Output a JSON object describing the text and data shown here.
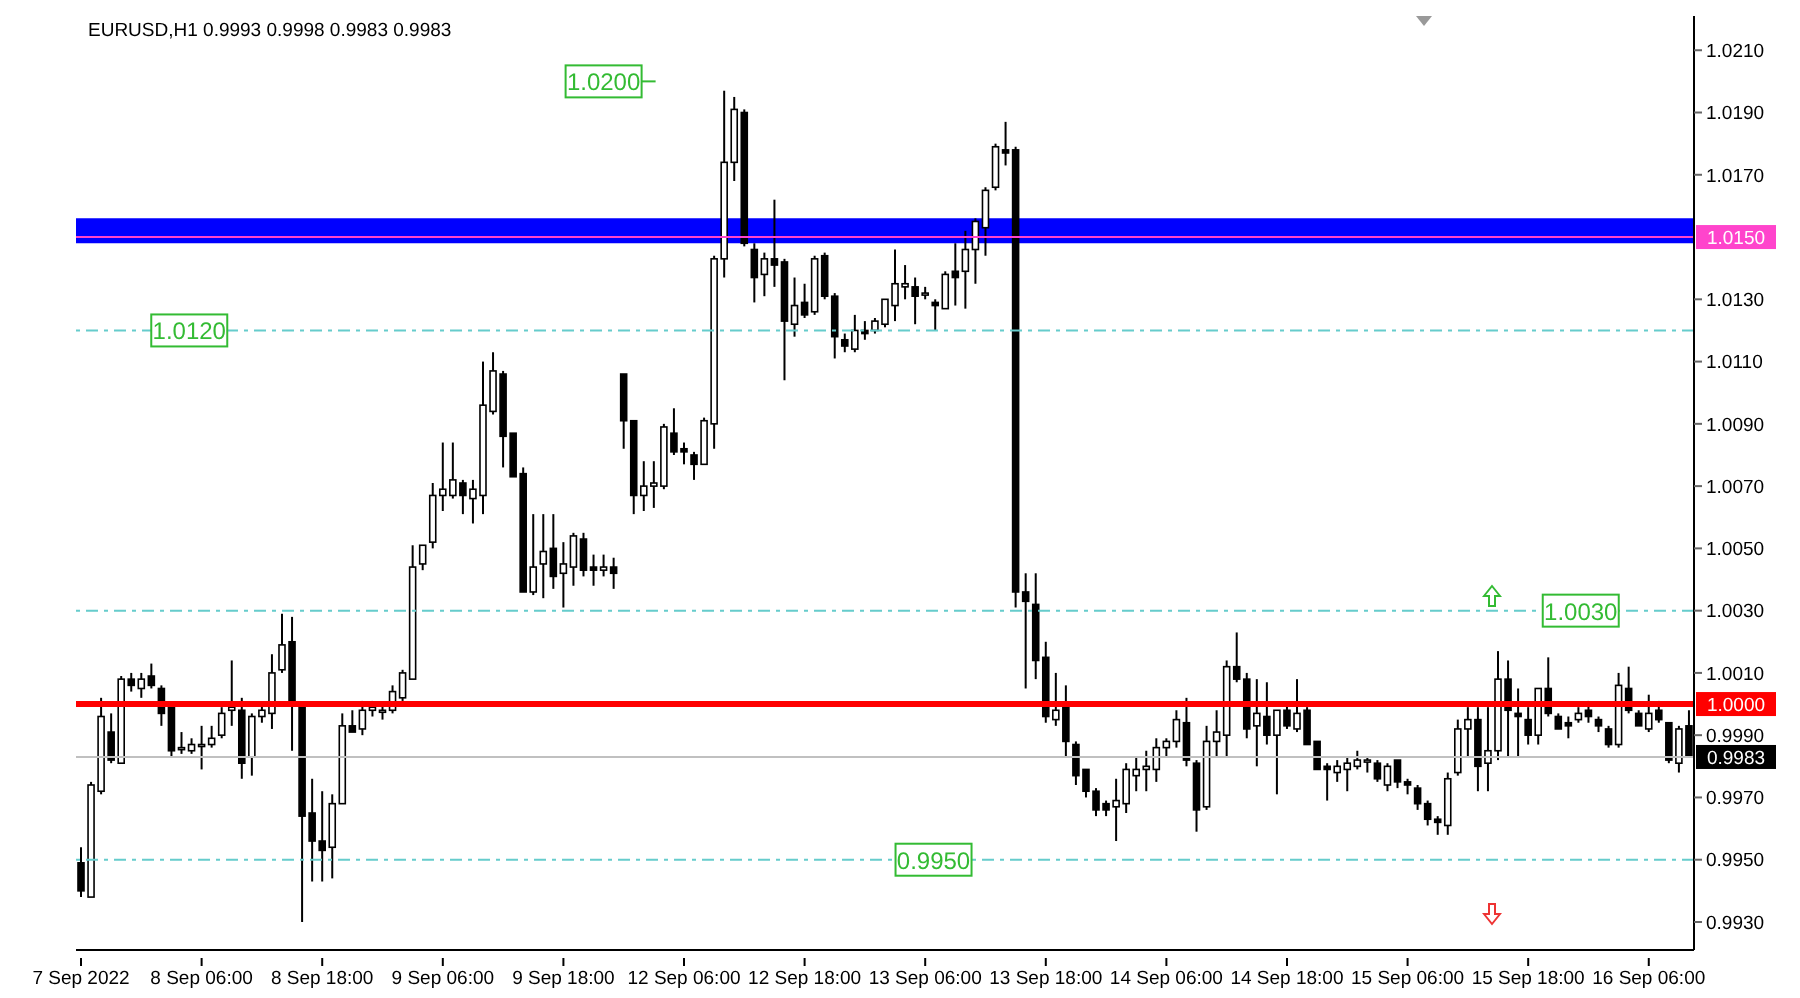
{
  "chart_data": {
    "type": "candlestick",
    "title": "EURUSD,H1  0.9993 0.9998 0.9983 0.9983",
    "color": "#000000",
    "categories": [
      "7 Sep 2022",
      null,
      null,
      null,
      null,
      null,
      null,
      null,
      null,
      null,
      null,
      null,
      "8 Sep 06:00",
      null,
      null,
      null,
      null,
      null,
      null,
      null,
      null,
      null,
      null,
      null,
      "8 Sep 18:00",
      null,
      null,
      null,
      null,
      null,
      null,
      null,
      null,
      null,
      null,
      null,
      "9 Sep 06:00",
      null,
      null,
      null,
      null,
      null,
      null,
      null,
      null,
      null,
      null,
      null,
      "9 Sep 18:00",
      null,
      null,
      null,
      null,
      null,
      null,
      null,
      null,
      null,
      null,
      null,
      "12 Sep 06:00",
      null,
      null,
      null,
      null,
      null,
      null,
      null,
      null,
      null,
      null,
      null,
      "12 Sep 18:00",
      null,
      null,
      null,
      null,
      null,
      null,
      null,
      null,
      null,
      null,
      null,
      "13 Sep 06:00",
      null,
      null,
      null,
      null,
      null,
      null,
      null,
      null,
      null,
      null,
      null,
      "13 Sep 18:00",
      null,
      null,
      null,
      null,
      null,
      null,
      null,
      null,
      null,
      null,
      null,
      "14 Sep 06:00",
      null,
      null,
      null,
      null,
      null,
      null,
      null,
      null,
      null,
      null,
      null,
      "14 Sep 18:00",
      null,
      null,
      null,
      null,
      null,
      null,
      null,
      null,
      null,
      null,
      null,
      "15 Sep 06:00",
      null,
      null,
      null,
      null,
      null,
      null,
      null,
      null,
      null,
      null,
      null,
      "15 Sep 18:00",
      null,
      null,
      null,
      null,
      null,
      null,
      null,
      null,
      null,
      null,
      null,
      "16 Sep 06:00",
      null,
      null,
      null,
      null
    ],
    "ohlc": [
      [
        0.9949,
        0.9954,
        0.9938,
        0.994
      ],
      [
        0.9938,
        0.9975,
        0.9938,
        0.9974
      ],
      [
        0.9972,
        1.0002,
        0.9971,
        0.9996
      ],
      [
        0.9991,
        0.9997,
        0.9981,
        0.9982
      ],
      [
        0.9981,
        1.0009,
        0.9981,
        1.0008
      ],
      [
        1.0008,
        1.001,
        1.0004,
        1.0006
      ],
      [
        1.0005,
        1.001,
        1.0002,
        1.0008
      ],
      [
        1.0009,
        1.0013,
        1.0005,
        1.0006
      ],
      [
        1.0005,
        1.0006,
        0.9993,
        0.9997
      ],
      [
        0.9999,
        0.9999,
        0.9983,
        0.9985
      ],
      [
        0.9986,
        0.9991,
        0.9984,
        0.9986
      ],
      [
        0.9985,
        0.9989,
        0.9984,
        0.9987
      ],
      [
        0.9987,
        0.9993,
        0.9979,
        0.9987
      ],
      [
        0.9987,
        0.9993,
        0.9986,
        0.9989
      ],
      [
        0.999,
        0.9999,
        0.9989,
        0.9997
      ],
      [
        0.9998,
        1.0014,
        0.9993,
        0.9999
      ],
      [
        0.9998,
        1.0002,
        0.9976,
        0.9981
      ],
      [
        0.9983,
        0.9997,
        0.9977,
        0.9996
      ],
      [
        0.9996,
        1.0,
        0.9994,
        0.9998
      ],
      [
        0.9997,
        1.0016,
        0.9992,
        1.001
      ],
      [
        1.0011,
        1.0029,
        1.001,
        1.0019
      ],
      [
        1.002,
        1.0028,
        0.9985,
        1.0
      ],
      [
        1.0,
        1.0,
        0.993,
        0.9964
      ],
      [
        0.9965,
        0.9976,
        0.9943,
        0.9956
      ],
      [
        0.9956,
        0.9972,
        0.9943,
        0.9953
      ],
      [
        0.9954,
        0.9971,
        0.9944,
        0.9968
      ],
      [
        0.9968,
        0.9997,
        0.9968,
        0.9993
      ],
      [
        0.9993,
        0.9998,
        0.9991,
        0.9991
      ],
      [
        0.9992,
        1.0001,
        0.999,
        0.9998
      ],
      [
        0.9998,
        1.0001,
        0.9996,
        0.9999
      ],
      [
        0.9998,
        1.0,
        0.9995,
        0.9998
      ],
      [
        0.9998,
        1.0006,
        0.9997,
        1.0004
      ],
      [
        1.0002,
        1.0011,
        1.0001,
        1.001
      ],
      [
        1.0008,
        1.0051,
        1.0008,
        1.0044
      ],
      [
        1.0045,
        1.0051,
        1.0043,
        1.0051
      ],
      [
        1.0052,
        1.0071,
        1.005,
        1.0067
      ],
      [
        1.0067,
        1.0084,
        1.0062,
        1.0069
      ],
      [
        1.0067,
        1.0084,
        1.0066,
        1.0072
      ],
      [
        1.0071,
        1.0072,
        1.0061,
        1.0067
      ],
      [
        1.0066,
        1.0072,
        1.0058,
        1.0069
      ],
      [
        1.0067,
        1.011,
        1.0061,
        1.0096
      ],
      [
        1.0094,
        1.0113,
        1.0093,
        1.0107
      ],
      [
        1.0106,
        1.0107,
        1.0076,
        1.0086
      ],
      [
        1.0087,
        1.0087,
        1.0073,
        1.0073
      ],
      [
        1.0074,
        1.0076,
        1.0036,
        1.0036
      ],
      [
        1.0036,
        1.0061,
        1.0035,
        1.0044
      ],
      [
        1.0045,
        1.0061,
        1.0034,
        1.0049
      ],
      [
        1.005,
        1.0061,
        1.0037,
        1.0041
      ],
      [
        1.0042,
        1.0052,
        1.0031,
        1.0045
      ],
      [
        1.0044,
        1.0055,
        1.0038,
        1.0054
      ],
      [
        1.0053,
        1.0055,
        1.0041,
        1.0043
      ],
      [
        1.0044,
        1.0048,
        1.0038,
        1.0043
      ],
      [
        1.0043,
        1.0048,
        1.0041,
        1.0044
      ],
      [
        1.0044,
        1.0047,
        1.0037,
        1.0042
      ],
      [
        1.0106,
        1.0106,
        1.0082,
        1.0091
      ],
      [
        1.0091,
        1.0091,
        1.0061,
        1.0067
      ],
      [
        1.0067,
        1.0078,
        1.0062,
        1.007
      ],
      [
        1.007,
        1.0078,
        1.0063,
        1.0071
      ],
      [
        1.007,
        1.009,
        1.0069,
        1.0089
      ],
      [
        1.0087,
        1.0095,
        1.008,
        1.0081
      ],
      [
        1.0082,
        1.0084,
        1.0077,
        1.0081
      ],
      [
        1.008,
        1.0081,
        1.0072,
        1.0077
      ],
      [
        1.0077,
        1.0092,
        1.0077,
        1.0091
      ],
      [
        1.009,
        1.0144,
        1.0082,
        1.0143
      ],
      [
        1.0143,
        1.0197,
        1.0137,
        1.0174
      ],
      [
        1.0174,
        1.0195,
        1.0168,
        1.0191
      ],
      [
        1.019,
        1.0191,
        1.0147,
        1.0148
      ],
      [
        1.0146,
        1.0148,
        1.0129,
        1.0137
      ],
      [
        1.0138,
        1.0145,
        1.0131,
        1.0143
      ],
      [
        1.0143,
        1.0162,
        1.0134,
        1.0141
      ],
      [
        1.0142,
        1.0143,
        1.0104,
        1.0123
      ],
      [
        1.0122,
        1.0137,
        1.0118,
        1.0128
      ],
      [
        1.0129,
        1.0135,
        1.0124,
        1.0125
      ],
      [
        1.0126,
        1.0144,
        1.0125,
        1.0143
      ],
      [
        1.0144,
        1.0145,
        1.013,
        1.0131
      ],
      [
        1.0131,
        1.0132,
        1.0111,
        1.0118
      ],
      [
        1.0117,
        1.0119,
        1.0113,
        1.0115
      ],
      [
        1.0114,
        1.0125,
        1.0113,
        1.012
      ],
      [
        1.012,
        1.0123,
        1.0117,
        1.0119
      ],
      [
        1.012,
        1.0124,
        1.0119,
        1.0123
      ],
      [
        1.0122,
        1.013,
        1.0121,
        1.013
      ],
      [
        1.0128,
        1.0146,
        1.0123,
        1.0135
      ],
      [
        1.0134,
        1.0141,
        1.013,
        1.0135
      ],
      [
        1.0134,
        1.0137,
        1.0122,
        1.0131
      ],
      [
        1.0132,
        1.0134,
        1.013,
        1.0132
      ],
      [
        1.0129,
        1.013,
        1.012,
        1.0128
      ],
      [
        1.0127,
        1.0139,
        1.0127,
        1.0138
      ],
      [
        1.0139,
        1.0148,
        1.0128,
        1.0137
      ],
      [
        1.0139,
        1.0152,
        1.0127,
        1.0146
      ],
      [
        1.0146,
        1.0156,
        1.0135,
        1.0155
      ],
      [
        1.0153,
        1.0166,
        1.0144,
        1.0165
      ],
      [
        1.0166,
        1.018,
        1.0165,
        1.0179
      ],
      [
        1.0178,
        1.0187,
        1.0173,
        1.0177
      ],
      [
        1.0178,
        1.0179,
        1.0031,
        1.0036
      ],
      [
        1.0036,
        1.0042,
        1.0005,
        1.0033
      ],
      [
        1.0032,
        1.0042,
        1.0008,
        1.0014
      ],
      [
        1.0015,
        1.002,
        0.9994,
        0.9996
      ],
      [
        0.9995,
        1.001,
        0.9993,
        0.9998
      ],
      [
        1.0,
        1.0006,
        0.9983,
        0.9988
      ],
      [
        0.9987,
        0.9988,
        0.9974,
        0.9977
      ],
      [
        0.9979,
        0.9979,
        0.997,
        0.9972
      ],
      [
        0.9972,
        0.9973,
        0.9964,
        0.9966
      ],
      [
        0.9968,
        0.9969,
        0.9964,
        0.9966
      ],
      [
        0.9967,
        0.9976,
        0.9956,
        0.9969
      ],
      [
        0.9968,
        0.9981,
        0.9965,
        0.9979
      ],
      [
        0.9977,
        0.9983,
        0.9972,
        0.9979
      ],
      [
        0.9979,
        0.9985,
        0.9972,
        0.998
      ],
      [
        0.9979,
        0.9989,
        0.9975,
        0.9986
      ],
      [
        0.9986,
        0.9989,
        0.9983,
        0.9988
      ],
      [
        0.9988,
        0.9998,
        0.9986,
        0.9995
      ],
      [
        0.9994,
        1.0002,
        0.998,
        0.9982
      ],
      [
        0.9981,
        0.9982,
        0.9959,
        0.9966
      ],
      [
        0.9967,
        0.9993,
        0.9966,
        0.9988
      ],
      [
        0.9988,
        0.9998,
        0.9983,
        0.9991
      ],
      [
        0.999,
        1.0014,
        0.9983,
        1.0012
      ],
      [
        1.0012,
        1.0023,
        1.0007,
        1.0008
      ],
      [
        1.0008,
        1.001,
        0.9989,
        0.9992
      ],
      [
        0.9993,
        1.0008,
        0.998,
        0.9997
      ],
      [
        0.9996,
        1.0007,
        0.9987,
        0.999
      ],
      [
        0.999,
        0.9998,
        0.9971,
        0.9998
      ],
      [
        0.9998,
        1.0,
        0.9992,
        0.9993
      ],
      [
        0.9992,
        1.0008,
        0.9991,
        0.9997
      ],
      [
        0.9998,
        0.9999,
        0.9987,
        0.9987
      ],
      [
        0.9988,
        0.9988,
        0.9979,
        0.9979
      ],
      [
        0.998,
        0.9981,
        0.9969,
        0.9979
      ],
      [
        0.9978,
        0.9982,
        0.9975,
        0.998
      ],
      [
        0.9979,
        0.9983,
        0.9972,
        0.9981
      ],
      [
        0.998,
        0.9985,
        0.9979,
        0.9982
      ],
      [
        0.9982,
        0.9983,
        0.9978,
        0.9982
      ],
      [
        0.9981,
        0.9982,
        0.9975,
        0.9976
      ],
      [
        0.9974,
        0.9981,
        0.9972,
        0.998
      ],
      [
        0.9982,
        0.9982,
        0.9973,
        0.9975
      ],
      [
        0.9975,
        0.9976,
        0.9971,
        0.9974
      ],
      [
        0.9973,
        0.9974,
        0.9966,
        0.9968
      ],
      [
        0.9968,
        0.9969,
        0.9961,
        0.9963
      ],
      [
        0.9963,
        0.9964,
        0.9958,
        0.9962
      ],
      [
        0.9961,
        0.9978,
        0.9958,
        0.9976
      ],
      [
        0.9978,
        0.9995,
        0.9977,
        0.9992
      ],
      [
        0.9992,
        0.9999,
        0.9983,
        0.9995
      ],
      [
        0.9995,
        0.9999,
        0.9972,
        0.998
      ],
      [
        0.9981,
        0.9999,
        0.9972,
        0.9985
      ],
      [
        0.9985,
        1.0017,
        0.9982,
        1.0008
      ],
      [
        1.0008,
        1.0014,
        0.9983,
        0.9998
      ],
      [
        0.9997,
        1.0005,
        0.9983,
        0.9996
      ],
      [
        0.9995,
        0.9999,
        0.9987,
        0.999
      ],
      [
        0.999,
        1.0005,
        0.9987,
        1.0005
      ],
      [
        1.0005,
        1.0015,
        0.9996,
        0.9997
      ],
      [
        0.9996,
        0.9997,
        0.9992,
        0.9992
      ],
      [
        0.9994,
        0.9996,
        0.9989,
        0.9993
      ],
      [
        0.9995,
        0.9999,
        0.9994,
        0.9997
      ],
      [
        0.9998,
        1.0001,
        0.9994,
        0.9996
      ],
      [
        0.9995,
        0.9996,
        0.9991,
        0.9993
      ],
      [
        0.9992,
        0.9993,
        0.9986,
        0.9987
      ],
      [
        0.9987,
        1.001,
        0.9986,
        1.0006
      ],
      [
        1.0005,
        1.0012,
        0.9997,
        0.9998
      ],
      [
        0.9997,
        0.9998,
        0.9993,
        0.9993
      ],
      [
        0.9992,
        1.0003,
        0.9991,
        0.9997
      ],
      [
        0.9998,
        1.0001,
        0.9994,
        0.9995
      ],
      [
        0.9994,
        0.9994,
        0.9981,
        0.9982
      ],
      [
        0.9981,
        0.9993,
        0.9978,
        0.9992
      ],
      [
        0.9993,
        0.9998,
        0.9983,
        0.9983
      ]
    ],
    "ylim": [
      0.9921,
      1.0221
    ],
    "yticks": [
      {
        "value": 0.993,
        "label": "0.9930"
      },
      {
        "value": 0.995,
        "label": "0.9950"
      },
      {
        "value": 0.997,
        "label": "0.9970"
      },
      {
        "value": 0.999,
        "label": "0.9990"
      },
      {
        "value": 1.001,
        "label": "1.0010"
      },
      {
        "value": 1.003,
        "label": "1.0030"
      },
      {
        "value": 1.005,
        "label": "1.0050"
      },
      {
        "value": 1.007,
        "label": "1.0070"
      },
      {
        "value": 1.009,
        "label": "1.0090"
      },
      {
        "value": 1.011,
        "label": "1.0110"
      },
      {
        "value": 1.013,
        "label": "1.0130"
      },
      {
        "value": 1.017,
        "label": "1.0170"
      },
      {
        "value": 1.019,
        "label": "1.0190"
      },
      {
        "value": 1.021,
        "label": "1.0210"
      }
    ],
    "bands": [
      {
        "axis": "y",
        "from": 1.0148,
        "to": 1.0156,
        "color": "#0000ff"
      }
    ],
    "ref_lines": [
      {
        "axis": "y",
        "value": 1.015,
        "label": "1.0150",
        "color": "#ff44cc",
        "line_style": "solid"
      },
      {
        "axis": "y",
        "value": 1.0,
        "label": "1.0000",
        "color": "#ff0000",
        "line_style": "solid"
      },
      {
        "axis": "y",
        "value": 0.9983,
        "label": "0.9983",
        "color": "#c0c0c0",
        "line_style": "solid"
      },
      {
        "axis": "y",
        "value": 1.012,
        "label": "1.0120",
        "color": "#66cccc",
        "line_style": "dashed"
      },
      {
        "axis": "y",
        "value": 1.003,
        "label": "1.0030",
        "color": "#66cccc",
        "line_style": "dashed"
      },
      {
        "axis": "y",
        "value": 0.995,
        "label": "0.9950",
        "color": "#66cccc",
        "line_style": "dashed"
      }
    ],
    "annotations": [
      {
        "text": "1.0200",
        "y": 1.02
      }
    ]
  }
}
